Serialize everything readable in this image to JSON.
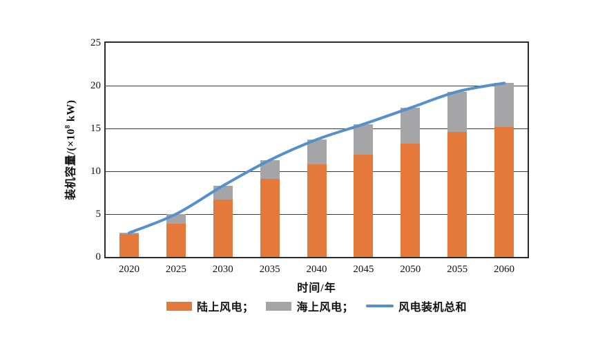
{
  "chart_data": {
    "type": "bar",
    "subtype": "stacked-bars-with-total-line",
    "title": "",
    "xlabel": "时间/年",
    "ylabel": "装机容量/(×10⁸ kW)",
    "ylabel_parts": {
      "prefix": "装机容量/(×10",
      "superscript": "8",
      "suffix": " kW)"
    },
    "categories": [
      "2020",
      "2025",
      "2030",
      "2035",
      "2040",
      "2045",
      "2050",
      "2055",
      "2060"
    ],
    "series": [
      {
        "name": "陆上风电",
        "type": "bar",
        "color": "#E5793C",
        "values": [
          2.7,
          3.9,
          6.7,
          9.1,
          10.8,
          11.9,
          13.2,
          14.6,
          15.2
        ]
      },
      {
        "name": "海上风电",
        "type": "bar",
        "color": "#A5A5A7",
        "values": [
          0.1,
          1.1,
          1.6,
          2.2,
          2.9,
          3.6,
          4.2,
          4.7,
          5.1
        ]
      },
      {
        "name": "风电装机总和",
        "type": "line",
        "color": "#5590CC",
        "values": [
          2.8,
          5.0,
          8.3,
          11.3,
          13.7,
          15.5,
          17.4,
          19.3,
          20.3
        ]
      }
    ],
    "ylim": [
      0,
      25
    ],
    "y_ticks": [
      0,
      5,
      10,
      15,
      20,
      25
    ],
    "grid": "horizontal",
    "legend_position": "bottom"
  },
  "legend": {
    "items": [
      {
        "label": "陆上风电；",
        "swatch": "bar",
        "color": "#E5793C"
      },
      {
        "label": "海上风电；",
        "swatch": "bar",
        "color": "#A5A5A7"
      },
      {
        "label": "风电装机总和",
        "swatch": "line",
        "color": "#5590CC"
      }
    ]
  },
  "style": {
    "grid_color": "#3a3a3a",
    "axis_color": "#2b2b2b",
    "text_color": "#111111",
    "background": "#ffffff"
  }
}
